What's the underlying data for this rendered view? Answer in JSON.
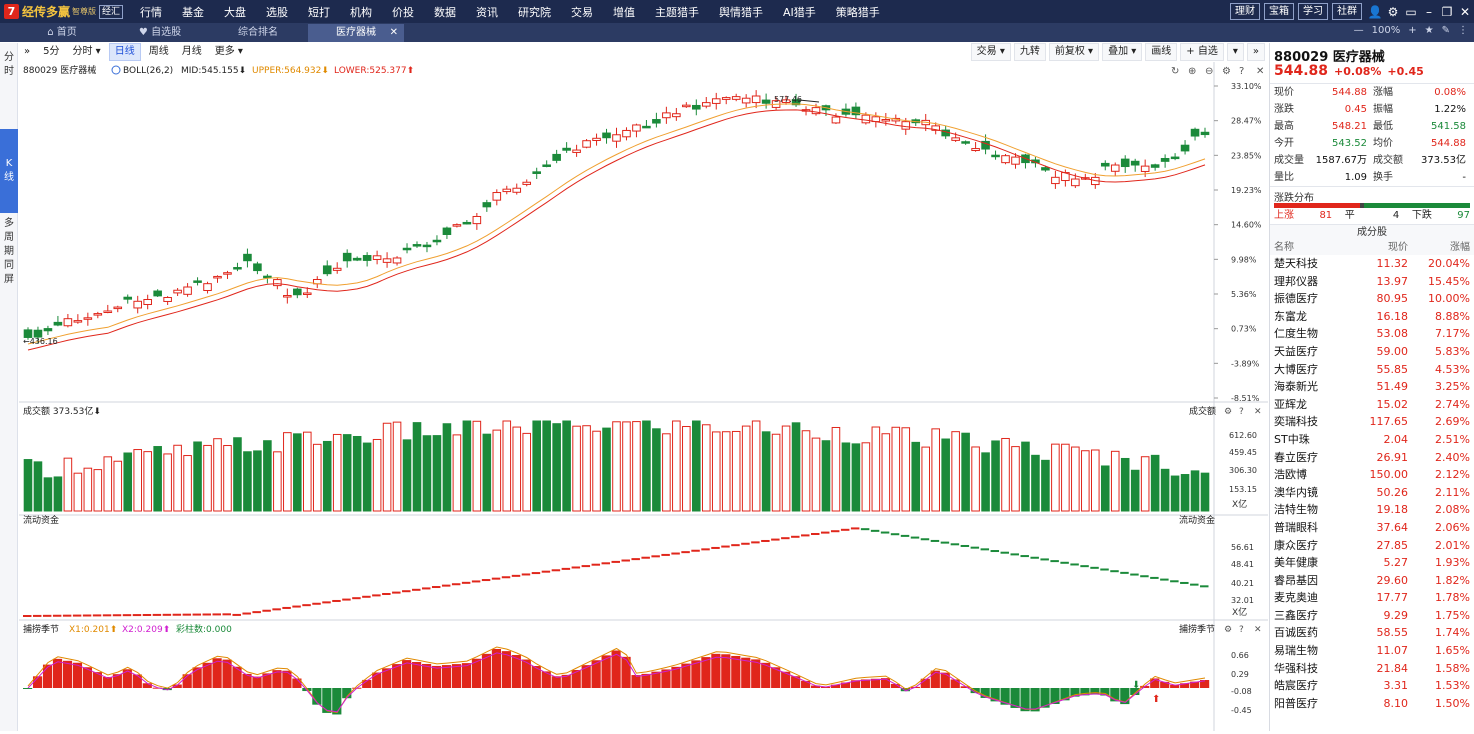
{
  "app": {
    "logo_mark": "7",
    "name": "经传多赢",
    "edition": "智尊版",
    "box_label": "经汇"
  },
  "menu": [
    "行情",
    "基金",
    "大盘",
    "选股",
    "短打",
    "机构",
    "价投",
    "数据",
    "资讯",
    "研究院",
    "交易",
    "增值",
    "主题猎手",
    "舆情猎手",
    "AI猎手",
    "策略猎手"
  ],
  "tools": {
    "buttons": [
      "理财",
      "宝箱",
      "学习",
      "社群"
    ],
    "icons": [
      "user-icon",
      "gear-icon",
      "window-icon",
      "minimize-icon",
      "restore-icon",
      "close-icon"
    ]
  },
  "tabs": [
    {
      "label": "首页",
      "icon": "home-icon"
    },
    {
      "label": "自选股",
      "icon": "heart-icon"
    },
    {
      "label": "综合排名"
    },
    {
      "label": "医疗器械",
      "active": true
    }
  ],
  "tabbar_right": {
    "zoom": "100%",
    "symbols": [
      "—",
      "+",
      "★",
      "✎",
      "⋮"
    ]
  },
  "leftnav": [
    "分\n时",
    "K\n线",
    "多\n周\n期\n同\n屏"
  ],
  "chart_toolbar": {
    "left": [
      "»",
      "5分",
      "分时 ▾",
      "日线",
      "周线",
      "月线",
      "更多 ▾"
    ],
    "active": "日线",
    "right": [
      "交易 ▾",
      "九转",
      "前复权 ▾",
      "叠加 ▾",
      "画线",
      "+ 自选",
      "▾",
      "»"
    ]
  },
  "main_chart": {
    "code_name": "880029 医疗器械",
    "indicator": "BOLL(26,2)",
    "mid": "MID:545.155",
    "upper": "UPPER:564.932",
    "lower": "LOWER:525.377",
    "high_label": "577.46",
    "low_label": "436.16",
    "y_ticks": [
      "33.10%",
      "28.47%",
      "23.85%",
      "19.23%",
      "14.60%",
      "9.98%",
      "5.36%",
      "0.73%",
      "-3.89%",
      "-8.51%"
    ]
  },
  "volume_panel": {
    "title": "成交额",
    "value": "373.53亿",
    "right_label": "成交额",
    "y_ticks": [
      "612.60",
      "459.45",
      "306.30",
      "153.15"
    ],
    "unit": "X亿"
  },
  "flow_panel": {
    "title": "流动资金",
    "right_label": "流动资金",
    "y_ticks": [
      "56.61",
      "48.41",
      "40.21",
      "32.01"
    ],
    "unit": "X亿"
  },
  "hunter_panel": {
    "title": "捕捞季节",
    "x1": "X1:0.201",
    "x2": "X2:0.209",
    "bars": "彩柱数:0.000",
    "right_label": "捕捞季节",
    "y_ticks": [
      "0.66",
      "0.29",
      "-0.08",
      "-0.45"
    ]
  },
  "quote": {
    "title": "880029 医疗器械",
    "price": "544.88",
    "pct": "+0.08%",
    "chg": "+0.45",
    "fields": [
      {
        "k": "现价",
        "v": "544.88",
        "c": "red"
      },
      {
        "k": "涨幅",
        "v": "0.08%",
        "c": "red"
      },
      {
        "k": "涨跌",
        "v": "0.45",
        "c": "red"
      },
      {
        "k": "振幅",
        "v": "1.22%",
        "c": "black"
      },
      {
        "k": "最高",
        "v": "548.21",
        "c": "red"
      },
      {
        "k": "最低",
        "v": "541.58",
        "c": "green"
      },
      {
        "k": "今开",
        "v": "543.52",
        "c": "green"
      },
      {
        "k": "均价",
        "v": "544.88",
        "c": "red"
      },
      {
        "k": "成交量",
        "v": "1587.67万",
        "c": "black"
      },
      {
        "k": "成交额",
        "v": "373.53亿",
        "c": "black"
      },
      {
        "k": "量比",
        "v": "1.09",
        "c": "black"
      },
      {
        "k": "换手",
        "v": "-",
        "c": "black"
      }
    ]
  },
  "distribution": {
    "title": "涨跌分布",
    "up_label": "上涨",
    "up": "81",
    "flat_label": "平",
    "flat": "4",
    "down_label": "下跌",
    "down": "97",
    "up_color": "#e0261b",
    "down_color": "#1b8a3a"
  },
  "constituents": {
    "title": "成分股",
    "headers": [
      "名称",
      "现价",
      "涨幅"
    ],
    "rows": [
      [
        "楚天科技",
        "11.32",
        "20.04%"
      ],
      [
        "理邦仪器",
        "13.97",
        "15.45%"
      ],
      [
        "振德医疗",
        "80.95",
        "10.00%"
      ],
      [
        "东富龙",
        "16.18",
        "8.88%"
      ],
      [
        "仁度生物",
        "53.08",
        "7.17%"
      ],
      [
        "天益医疗",
        "59.00",
        "5.83%"
      ],
      [
        "大博医疗",
        "55.85",
        "4.53%"
      ],
      [
        "海泰新光",
        "51.49",
        "3.25%"
      ],
      [
        "亚辉龙",
        "15.02",
        "2.74%"
      ],
      [
        "奕瑞科技",
        "117.65",
        "2.69%"
      ],
      [
        "ST中珠",
        "2.04",
        "2.51%"
      ],
      [
        "春立医疗",
        "26.91",
        "2.40%"
      ],
      [
        "浩欧博",
        "150.00",
        "2.12%"
      ],
      [
        "澳华内镜",
        "50.26",
        "2.11%"
      ],
      [
        "洁特生物",
        "19.18",
        "2.08%"
      ],
      [
        "普瑞眼科",
        "37.64",
        "2.06%"
      ],
      [
        "康众医疗",
        "27.85",
        "2.01%"
      ],
      [
        "美年健康",
        "5.27",
        "1.93%"
      ],
      [
        "睿昂基因",
        "29.60",
        "1.82%"
      ],
      [
        "麦克奥迪",
        "17.77",
        "1.78%"
      ],
      [
        "三鑫医疗",
        "9.29",
        "1.75%"
      ],
      [
        "百诚医药",
        "58.55",
        "1.74%"
      ],
      [
        "易瑞生物",
        "11.07",
        "1.65%"
      ],
      [
        "华强科技",
        "21.84",
        "1.58%"
      ],
      [
        "皓宸医疗",
        "3.31",
        "1.53%"
      ],
      [
        "阳普医疗",
        "8.10",
        "1.50%"
      ]
    ]
  },
  "colors": {
    "up": "#e0261b",
    "down": "#1b8a3a",
    "upper": "#f0a030",
    "mid": "#e05050",
    "lower": "#e0261b"
  }
}
